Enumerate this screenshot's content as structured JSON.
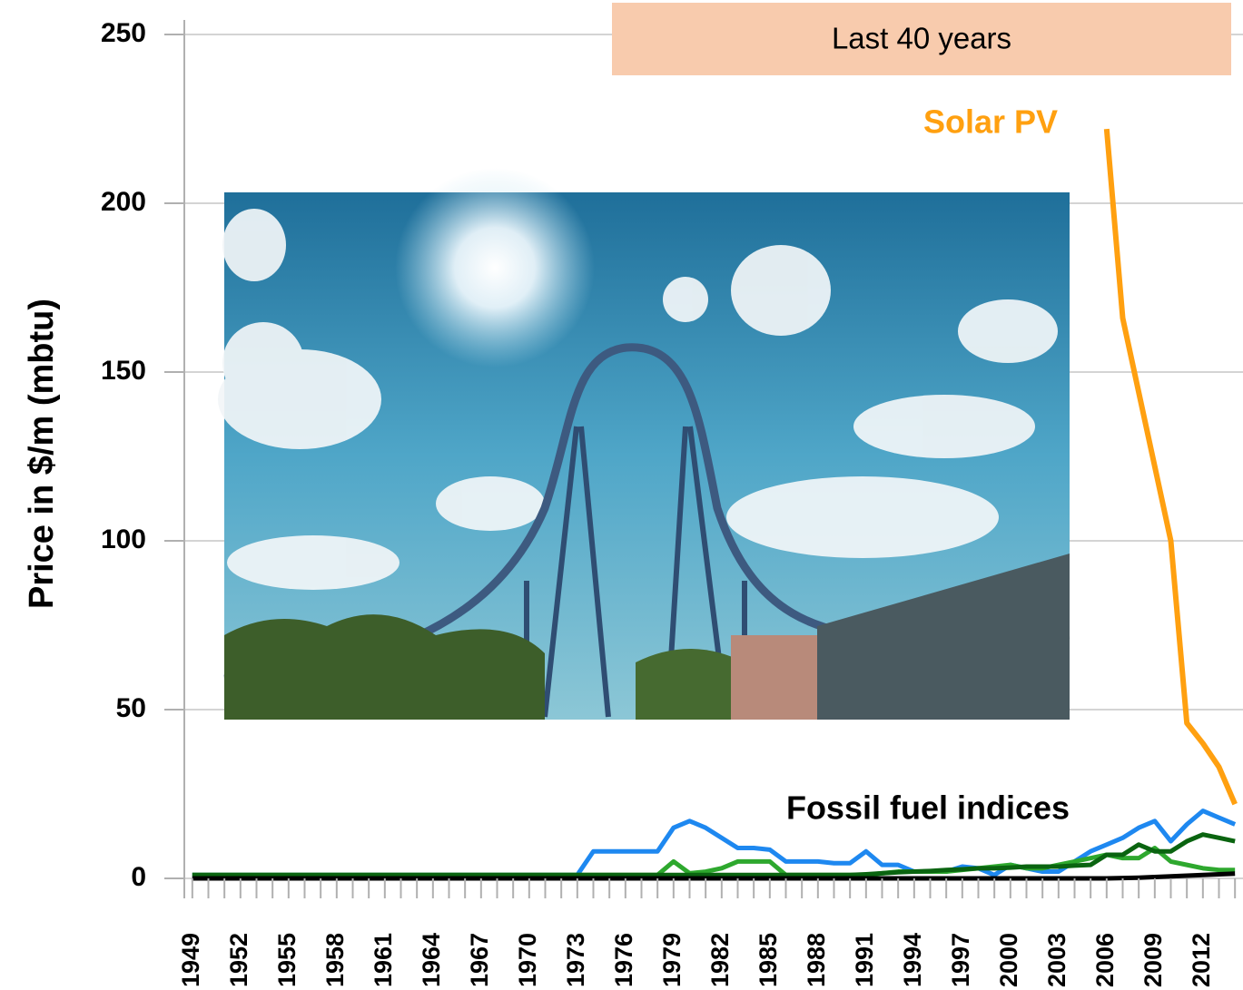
{
  "chart_data": {
    "type": "line",
    "y_label": "Price in $/m (mbtu)",
    "annotations": [
      "Last 40 years",
      "Solar PV",
      "Fossil fuel indices"
    ],
    "x": [
      1949,
      1950,
      1951,
      1952,
      1953,
      1954,
      1955,
      1956,
      1957,
      1958,
      1959,
      1960,
      1961,
      1962,
      1963,
      1964,
      1965,
      1966,
      1967,
      1968,
      1969,
      1970,
      1971,
      1972,
      1973,
      1974,
      1975,
      1976,
      1977,
      1978,
      1979,
      1980,
      1981,
      1982,
      1983,
      1984,
      1985,
      1986,
      1987,
      1988,
      1989,
      1990,
      1991,
      1992,
      1993,
      1994,
      1995,
      1996,
      1997,
      1998,
      1999,
      2000,
      2001,
      2002,
      2003,
      2004,
      2005,
      2006,
      2007,
      2008,
      2009,
      2010,
      2011,
      2012,
      2013,
      2014
    ],
    "xlim": [
      1948.5,
      2014.5
    ],
    "xticks": [
      1949,
      1952,
      1955,
      1958,
      1961,
      1964,
      1967,
      1970,
      1973,
      1976,
      1979,
      1982,
      1985,
      1988,
      1991,
      1994,
      1997,
      2000,
      2003,
      2006,
      2009,
      2012
    ],
    "ylim": [
      0,
      250
    ],
    "yticks": [
      0,
      50,
      100,
      150,
      200,
      250
    ],
    "grid": true,
    "series": [
      {
        "color": "#1e88f0",
        "values": [
          1,
          1,
          1,
          1,
          1,
          1,
          1,
          1,
          1,
          1,
          1,
          1,
          1,
          1,
          1,
          1,
          1,
          1,
          1,
          1,
          1,
          1,
          1,
          1,
          1,
          8,
          8,
          8,
          8,
          8,
          15,
          17,
          15,
          12,
          9,
          9,
          8.5,
          5,
          5,
          5,
          4.5,
          4.5,
          8,
          4,
          4,
          2,
          2,
          2,
          3.5,
          3,
          1,
          4,
          3,
          2,
          2,
          5,
          8,
          10,
          12,
          15,
          17,
          11,
          16,
          20,
          18,
          16
        ]
      },
      {
        "color": "#2ea82e",
        "values": [
          1,
          1,
          1,
          1,
          1,
          1,
          1,
          1,
          1,
          1,
          1,
          1,
          1,
          1,
          1,
          1,
          1,
          1,
          1,
          1,
          1,
          1,
          1,
          1,
          1,
          1,
          1,
          1,
          1,
          1,
          5,
          1.5,
          2,
          3,
          5,
          5,
          5,
          1,
          1,
          1,
          1,
          1,
          1,
          1.5,
          2,
          2,
          2,
          2,
          2.5,
          3,
          3.5,
          4,
          3,
          3,
          4,
          5,
          6,
          7,
          6,
          6,
          9,
          5,
          4,
          3,
          2.5,
          2.5
        ]
      },
      {
        "color": "#0a6410",
        "values": [
          1,
          1,
          1,
          1,
          1,
          1,
          1,
          1,
          1,
          1,
          1,
          1,
          1,
          1,
          1,
          1,
          1,
          1,
          1,
          1,
          1,
          1,
          1,
          1,
          1,
          1,
          1,
          1,
          1,
          1,
          1,
          1,
          1,
          1,
          1,
          1,
          1,
          1,
          1,
          1,
          1,
          1,
          1.2,
          1.5,
          1.8,
          2,
          2.2,
          2.5,
          2.7,
          3,
          3,
          3.2,
          3.5,
          3.5,
          3.5,
          3.8,
          4,
          7,
          7,
          10,
          8,
          8,
          11,
          13,
          12,
          11
        ]
      },
      {
        "color": "#000000",
        "values": [
          0,
          0,
          0,
          0,
          0,
          0,
          0,
          0,
          0,
          0,
          0,
          0,
          0,
          0,
          0,
          0,
          0,
          0,
          0,
          0,
          0,
          0,
          0,
          0,
          0,
          0,
          0,
          0,
          0,
          0,
          0,
          0,
          0,
          0,
          0,
          0,
          0,
          0,
          0,
          0,
          0,
          0,
          0,
          0,
          0,
          0,
          0,
          0,
          0,
          0,
          0,
          0,
          0,
          0,
          0,
          0,
          0,
          0,
          0.1,
          0.2,
          0.4,
          0.6,
          0.8,
          1,
          1.2,
          1.4
        ]
      },
      {
        "color": "#ffa010",
        "values": [
          null,
          null,
          null,
          null,
          null,
          null,
          null,
          null,
          null,
          null,
          null,
          null,
          null,
          null,
          null,
          null,
          null,
          null,
          null,
          null,
          null,
          null,
          null,
          null,
          null,
          null,
          null,
          null,
          null,
          null,
          null,
          null,
          null,
          null,
          null,
          null,
          null,
          null,
          null,
          null,
          null,
          null,
          null,
          null,
          null,
          null,
          null,
          null,
          null,
          null,
          null,
          null,
          null,
          null,
          null,
          null,
          null,
          222,
          166,
          144,
          122,
          100,
          46,
          40,
          33,
          22
        ]
      }
    ]
  }
}
